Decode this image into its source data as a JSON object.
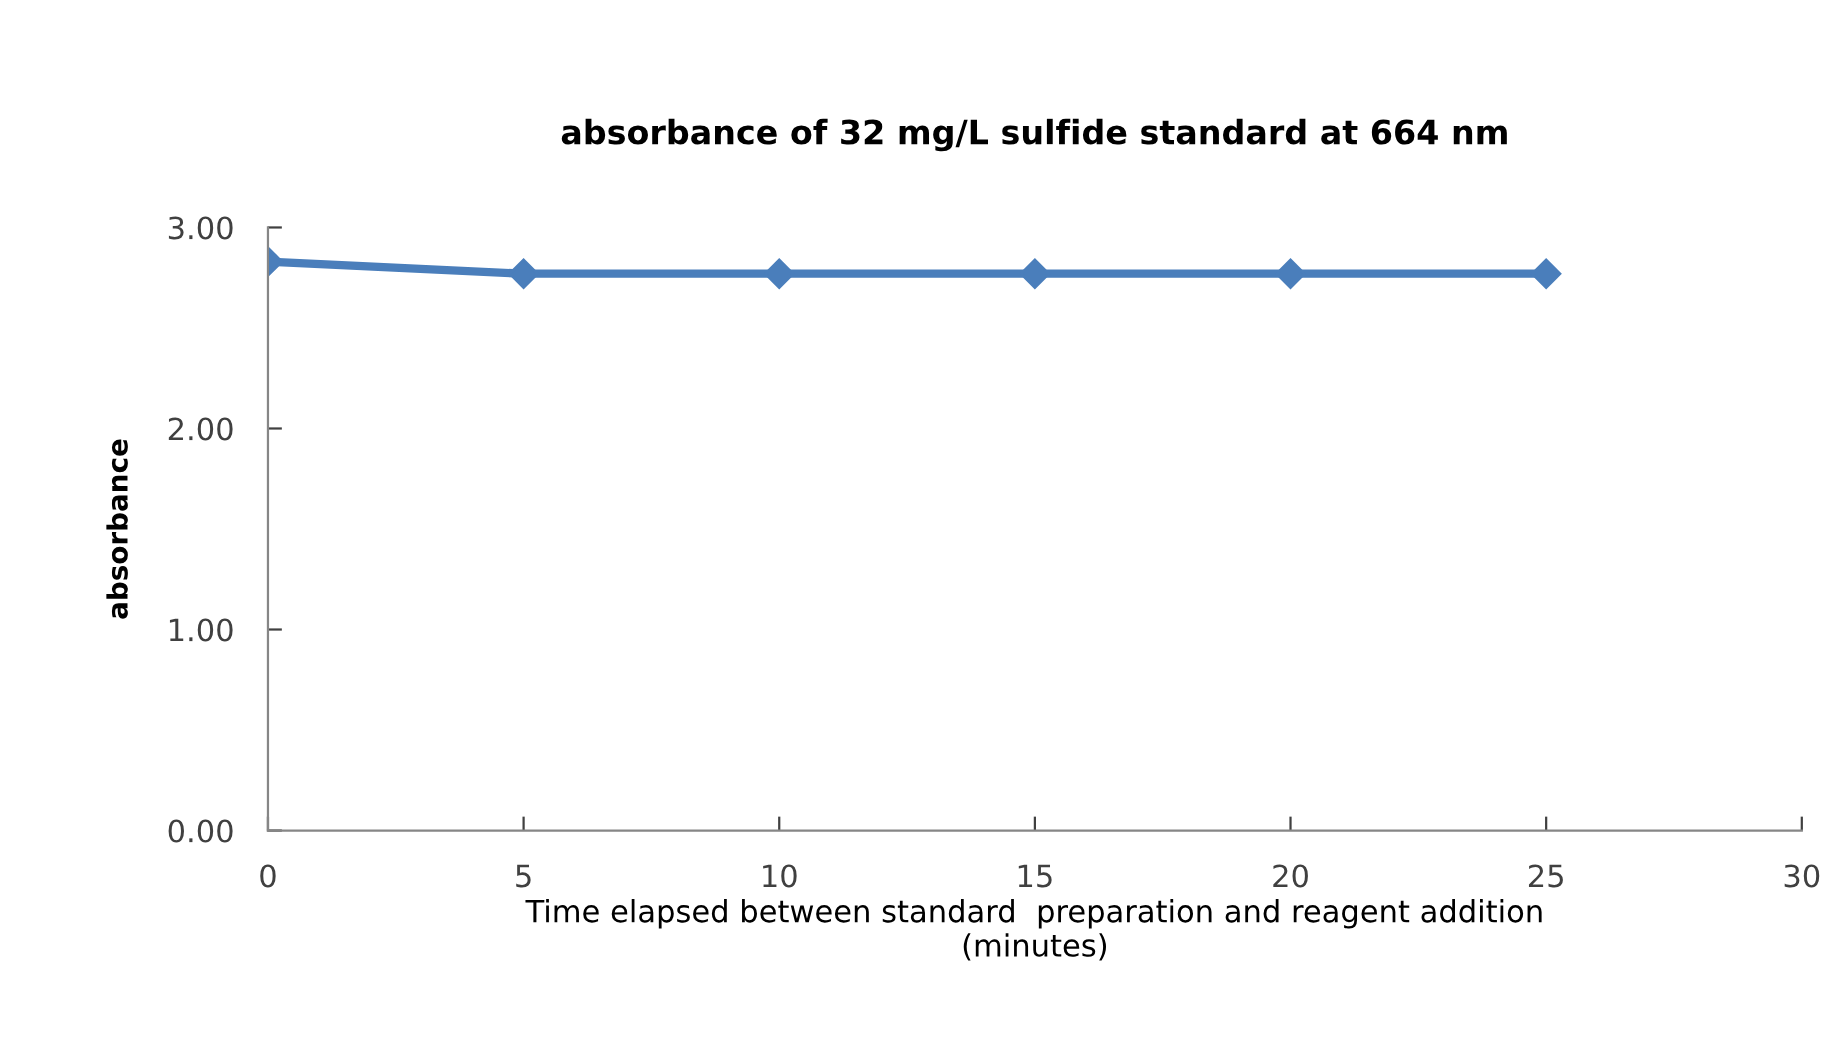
{
  "chart_data": {
    "type": "line",
    "title": "absorbance of 32 mg/L sulfide standard at 664 nm",
    "xlabel": "Time elapsed between standard  preparation and reagent addition\n(minutes)",
    "ylabel": "absorbance",
    "x": [
      0,
      5,
      10,
      15,
      20,
      25
    ],
    "series": [
      {
        "color": "#4a7ebb",
        "values": [
          2.83,
          2.77,
          2.77,
          2.77,
          2.77,
          2.77
        ]
      }
    ],
    "xlim": [
      0,
      30
    ],
    "xticks": [
      0,
      5,
      10,
      15,
      20,
      25,
      30
    ],
    "ylim": [
      0,
      3
    ],
    "yticks": [
      {
        "value": 0,
        "label": "0.00"
      },
      {
        "value": 1,
        "label": "1.00"
      },
      {
        "value": 2,
        "label": "2.00"
      },
      {
        "value": 3,
        "label": "3.00"
      }
    ],
    "grid": false,
    "marker": "diamond",
    "line_style": "solid"
  }
}
